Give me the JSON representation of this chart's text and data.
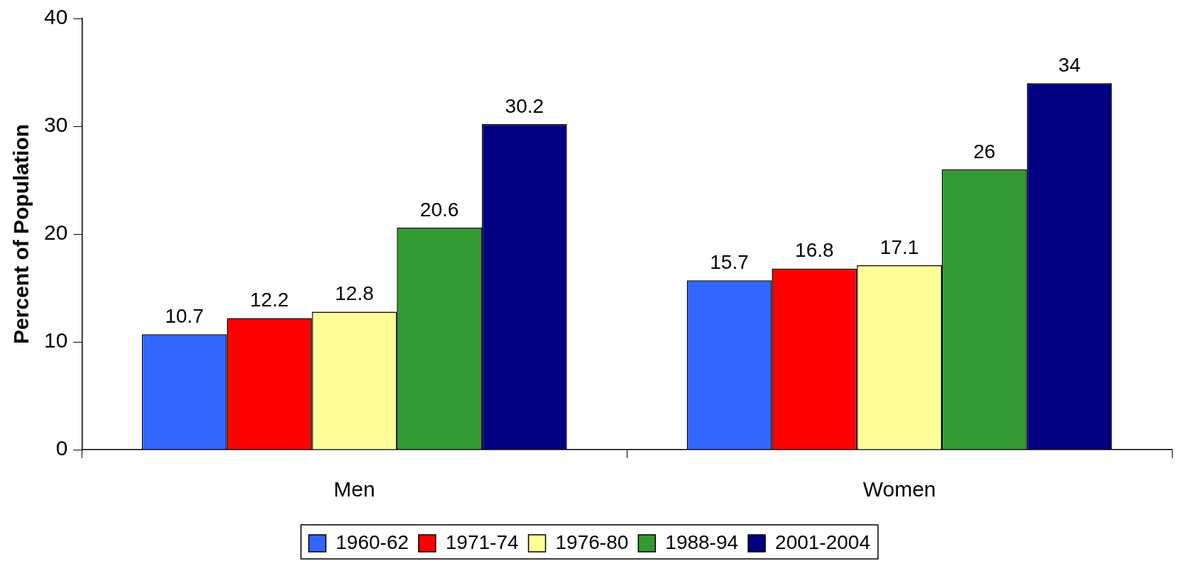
{
  "chart_data": {
    "type": "bar",
    "ylabel": "Percent of Population",
    "categories": [
      "Men",
      "Women"
    ],
    "series": [
      {
        "name": "1960-62",
        "color": "#3366ff",
        "values": [
          10.7,
          15.7
        ]
      },
      {
        "name": "1971-74",
        "color": "#ff0000",
        "values": [
          12.2,
          16.8
        ]
      },
      {
        "name": "1976-80",
        "color": "#ffff99",
        "values": [
          12.8,
          17.1
        ]
      },
      {
        "name": "1988-94",
        "color": "#339933",
        "values": [
          20.6,
          26
        ]
      },
      {
        "name": "2001-2004",
        "color": "#000080",
        "values": [
          30.2,
          34
        ]
      }
    ],
    "ylim": [
      0,
      40
    ],
    "yticks": [
      0,
      10,
      20,
      30,
      40
    ],
    "grid": false,
    "legend": "bottom",
    "data_labels": true
  }
}
